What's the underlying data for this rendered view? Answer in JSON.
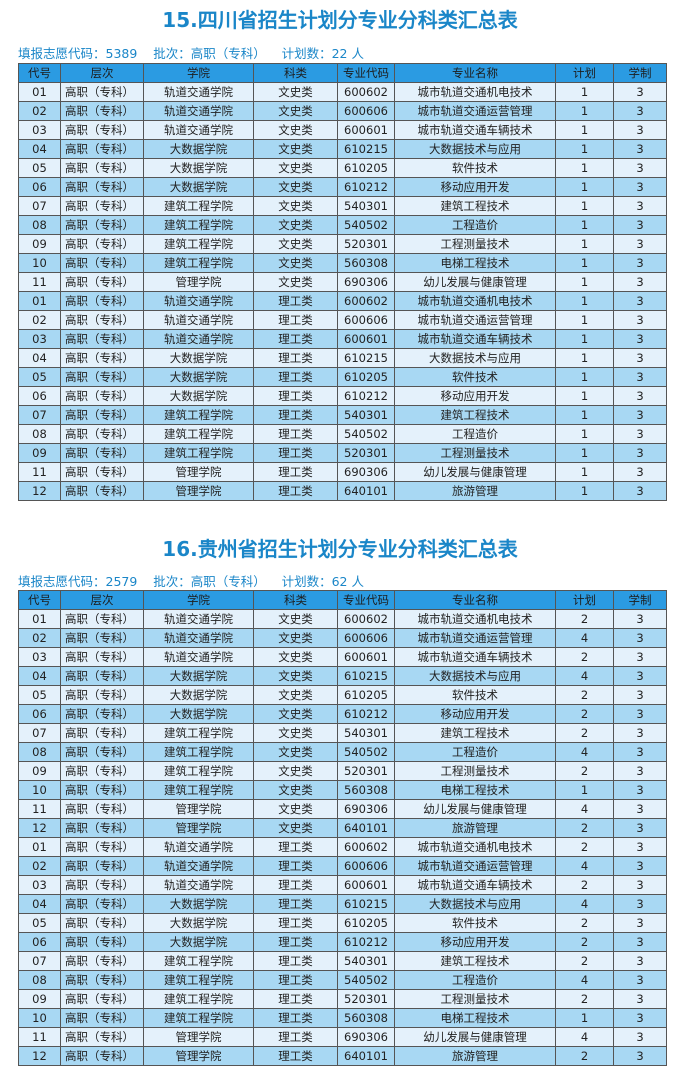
{
  "headers": [
    "代号",
    "层次",
    "学院",
    "科类",
    "专业代码",
    "专业名称",
    "计划",
    "学制"
  ],
  "sections": [
    {
      "title": "15.四川省招生计划分专业分科类汇总表",
      "info": "填报志愿代码：5389    批次：高职（专科）    计划数：22 人",
      "rows": [
        [
          "01",
          "高职（专科）",
          "轨道交通学院",
          "文史类",
          "600602",
          "城市轨道交通机电技术",
          "1",
          "3"
        ],
        [
          "02",
          "高职（专科）",
          "轨道交通学院",
          "文史类",
          "600606",
          "城市轨道交通运营管理",
          "1",
          "3"
        ],
        [
          "03",
          "高职（专科）",
          "轨道交通学院",
          "文史类",
          "600601",
          "城市轨道交通车辆技术",
          "1",
          "3"
        ],
        [
          "04",
          "高职（专科）",
          "大数据学院",
          "文史类",
          "610215",
          "大数据技术与应用",
          "1",
          "3"
        ],
        [
          "05",
          "高职（专科）",
          "大数据学院",
          "文史类",
          "610205",
          "软件技术",
          "1",
          "3"
        ],
        [
          "06",
          "高职（专科）",
          "大数据学院",
          "文史类",
          "610212",
          "移动应用开发",
          "1",
          "3"
        ],
        [
          "07",
          "高职（专科）",
          "建筑工程学院",
          "文史类",
          "540301",
          "建筑工程技术",
          "1",
          "3"
        ],
        [
          "08",
          "高职（专科）",
          "建筑工程学院",
          "文史类",
          "540502",
          "工程造价",
          "1",
          "3"
        ],
        [
          "09",
          "高职（专科）",
          "建筑工程学院",
          "文史类",
          "520301",
          "工程测量技术",
          "1",
          "3"
        ],
        [
          "10",
          "高职（专科）",
          "建筑工程学院",
          "文史类",
          "560308",
          "电梯工程技术",
          "1",
          "3"
        ],
        [
          "11",
          "高职（专科）",
          "管理学院",
          "文史类",
          "690306",
          "幼儿发展与健康管理",
          "1",
          "3"
        ],
        [
          "01",
          "高职（专科）",
          "轨道交通学院",
          "理工类",
          "600602",
          "城市轨道交通机电技术",
          "1",
          "3"
        ],
        [
          "02",
          "高职（专科）",
          "轨道交通学院",
          "理工类",
          "600606",
          "城市轨道交通运营管理",
          "1",
          "3"
        ],
        [
          "03",
          "高职（专科）",
          "轨道交通学院",
          "理工类",
          "600601",
          "城市轨道交通车辆技术",
          "1",
          "3"
        ],
        [
          "04",
          "高职（专科）",
          "大数据学院",
          "理工类",
          "610215",
          "大数据技术与应用",
          "1",
          "3"
        ],
        [
          "05",
          "高职（专科）",
          "大数据学院",
          "理工类",
          "610205",
          "软件技术",
          "1",
          "3"
        ],
        [
          "06",
          "高职（专科）",
          "大数据学院",
          "理工类",
          "610212",
          "移动应用开发",
          "1",
          "3"
        ],
        [
          "07",
          "高职（专科）",
          "建筑工程学院",
          "理工类",
          "540301",
          "建筑工程技术",
          "1",
          "3"
        ],
        [
          "08",
          "高职（专科）",
          "建筑工程学院",
          "理工类",
          "540502",
          "工程造价",
          "1",
          "3"
        ],
        [
          "09",
          "高职（专科）",
          "建筑工程学院",
          "理工类",
          "520301",
          "工程测量技术",
          "1",
          "3"
        ],
        [
          "11",
          "高职（专科）",
          "管理学院",
          "理工类",
          "690306",
          "幼儿发展与健康管理",
          "1",
          "3"
        ],
        [
          "12",
          "高职（专科）",
          "管理学院",
          "理工类",
          "640101",
          "旅游管理",
          "1",
          "3"
        ]
      ]
    },
    {
      "title": "16.贵州省招生计划分专业分科类汇总表",
      "info": "填报志愿代码：2579    批次：高职（专科）    计划数：62 人",
      "rows": [
        [
          "01",
          "高职（专科）",
          "轨道交通学院",
          "文史类",
          "600602",
          "城市轨道交通机电技术",
          "2",
          "3"
        ],
        [
          "02",
          "高职（专科）",
          "轨道交通学院",
          "文史类",
          "600606",
          "城市轨道交通运营管理",
          "4",
          "3"
        ],
        [
          "03",
          "高职（专科）",
          "轨道交通学院",
          "文史类",
          "600601",
          "城市轨道交通车辆技术",
          "2",
          "3"
        ],
        [
          "04",
          "高职（专科）",
          "大数据学院",
          "文史类",
          "610215",
          "大数据技术与应用",
          "4",
          "3"
        ],
        [
          "05",
          "高职（专科）",
          "大数据学院",
          "文史类",
          "610205",
          "软件技术",
          "2",
          "3"
        ],
        [
          "06",
          "高职（专科）",
          "大数据学院",
          "文史类",
          "610212",
          "移动应用开发",
          "2",
          "3"
        ],
        [
          "07",
          "高职（专科）",
          "建筑工程学院",
          "文史类",
          "540301",
          "建筑工程技术",
          "2",
          "3"
        ],
        [
          "08",
          "高职（专科）",
          "建筑工程学院",
          "文史类",
          "540502",
          "工程造价",
          "4",
          "3"
        ],
        [
          "09",
          "高职（专科）",
          "建筑工程学院",
          "文史类",
          "520301",
          "工程测量技术",
          "2",
          "3"
        ],
        [
          "10",
          "高职（专科）",
          "建筑工程学院",
          "文史类",
          "560308",
          "电梯工程技术",
          "1",
          "3"
        ],
        [
          "11",
          "高职（专科）",
          "管理学院",
          "文史类",
          "690306",
          "幼儿发展与健康管理",
          "4",
          "3"
        ],
        [
          "12",
          "高职（专科）",
          "管理学院",
          "文史类",
          "640101",
          "旅游管理",
          "2",
          "3"
        ],
        [
          "01",
          "高职（专科）",
          "轨道交通学院",
          "理工类",
          "600602",
          "城市轨道交通机电技术",
          "2",
          "3"
        ],
        [
          "02",
          "高职（专科）",
          "轨道交通学院",
          "理工类",
          "600606",
          "城市轨道交通运营管理",
          "4",
          "3"
        ],
        [
          "03",
          "高职（专科）",
          "轨道交通学院",
          "理工类",
          "600601",
          "城市轨道交通车辆技术",
          "2",
          "3"
        ],
        [
          "04",
          "高职（专科）",
          "大数据学院",
          "理工类",
          "610215",
          "大数据技术与应用",
          "4",
          "3"
        ],
        [
          "05",
          "高职（专科）",
          "大数据学院",
          "理工类",
          "610205",
          "软件技术",
          "2",
          "3"
        ],
        [
          "06",
          "高职（专科）",
          "大数据学院",
          "理工类",
          "610212",
          "移动应用开发",
          "2",
          "3"
        ],
        [
          "07",
          "高职（专科）",
          "建筑工程学院",
          "理工类",
          "540301",
          "建筑工程技术",
          "2",
          "3"
        ],
        [
          "08",
          "高职（专科）",
          "建筑工程学院",
          "理工类",
          "540502",
          "工程造价",
          "4",
          "3"
        ],
        [
          "09",
          "高职（专科）",
          "建筑工程学院",
          "理工类",
          "520301",
          "工程测量技术",
          "2",
          "3"
        ],
        [
          "10",
          "高职（专科）",
          "建筑工程学院",
          "理工类",
          "560308",
          "电梯工程技术",
          "1",
          "3"
        ],
        [
          "11",
          "高职（专科）",
          "管理学院",
          "理工类",
          "690306",
          "幼儿发展与健康管理",
          "4",
          "3"
        ],
        [
          "12",
          "高职（专科）",
          "管理学院",
          "理工类",
          "640101",
          "旅游管理",
          "2",
          "3"
        ]
      ]
    }
  ]
}
